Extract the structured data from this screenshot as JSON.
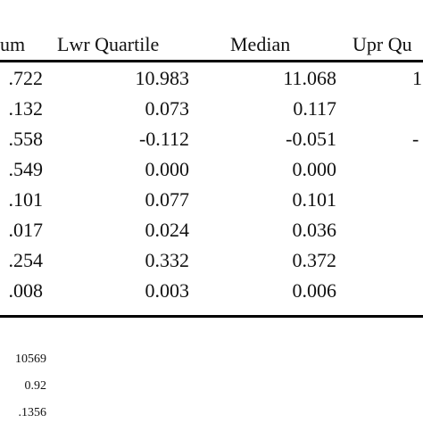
{
  "table": {
    "headers": [
      "um",
      "Lwr Quartile",
      "Median",
      "Upr Qu"
    ],
    "rows": [
      [
        ".722",
        "10.983",
        "11.068",
        "1"
      ],
      [
        ".132",
        "0.073",
        "0.117",
        ""
      ],
      [
        ".558",
        "-0.112",
        "-0.051",
        "-"
      ],
      [
        ".549",
        "0.000",
        "0.000",
        ""
      ],
      [
        ".101",
        "0.077",
        "0.101",
        ""
      ],
      [
        ".017",
        "0.024",
        "0.036",
        ""
      ],
      [
        ".254",
        "0.332",
        "0.372",
        ""
      ],
      [
        ".008",
        "0.003",
        "0.006",
        ""
      ]
    ]
  },
  "footer": {
    "values": [
      "10569",
      "0.92",
      ".1356"
    ]
  }
}
